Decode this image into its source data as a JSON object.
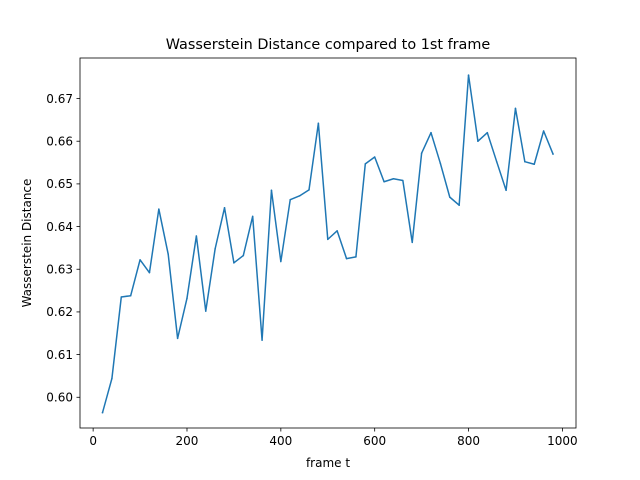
{
  "chart_data": {
    "type": "line",
    "title": "Wasserstein Distance compared to 1st frame",
    "xlabel": "frame t",
    "ylabel": "Wasserstein Distance",
    "xlim": [
      -28,
      1029
    ],
    "ylim": [
      0.5928,
      0.6795
    ],
    "xticks": [
      0,
      200,
      400,
      600,
      800,
      1000
    ],
    "xtick_labels": [
      "0",
      "200",
      "400",
      "600",
      "800",
      "1000"
    ],
    "yticks": [
      0.6,
      0.61,
      0.62,
      0.63,
      0.64,
      0.65,
      0.66,
      0.67
    ],
    "ytick_labels": [
      "0.60",
      "0.61",
      "0.62",
      "0.63",
      "0.64",
      "0.65",
      "0.66",
      "0.67"
    ],
    "grid": false,
    "series": [
      {
        "color": "#1f77b4",
        "x": [
          20,
          40,
          60,
          80,
          100,
          120,
          140,
          160,
          180,
          200,
          220,
          240,
          260,
          280,
          300,
          320,
          340,
          360,
          380,
          400,
          420,
          440,
          460,
          480,
          500,
          520,
          540,
          560,
          580,
          600,
          620,
          640,
          660,
          680,
          700,
          720,
          740,
          760,
          780,
          800,
          820,
          840,
          860,
          880,
          900,
          920,
          940,
          960,
          980
        ],
        "y": [
          0.5964,
          0.6044,
          0.6235,
          0.6238,
          0.6322,
          0.6292,
          0.6441,
          0.6335,
          0.6138,
          0.6232,
          0.6378,
          0.6202,
          0.6348,
          0.6444,
          0.6315,
          0.6332,
          0.6424,
          0.6134,
          0.6485,
          0.6318,
          0.6463,
          0.6472,
          0.6486,
          0.6642,
          0.637,
          0.639,
          0.6325,
          0.6329,
          0.6547,
          0.6563,
          0.6505,
          0.6512,
          0.6508,
          0.6363,
          0.6572,
          0.662,
          0.6548,
          0.6469,
          0.645,
          0.6755,
          0.66,
          0.662,
          0.6552,
          0.6485,
          0.6677,
          0.6552,
          0.6546,
          0.6624,
          0.657
        ]
      }
    ]
  }
}
